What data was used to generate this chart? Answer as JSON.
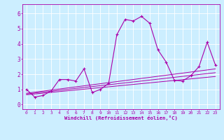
{
  "xlabel": "Windchill (Refroidissement éolien,°C)",
  "bg_color": "#cceeff",
  "line_color": "#aa00aa",
  "x_ticks": [
    0,
    1,
    2,
    3,
    4,
    5,
    6,
    7,
    8,
    9,
    10,
    11,
    12,
    13,
    14,
    15,
    16,
    17,
    18,
    19,
    20,
    21,
    22,
    23
  ],
  "y_ticks": [
    0,
    1,
    2,
    3,
    4,
    5,
    6
  ],
  "xlim": [
    -0.5,
    23.5
  ],
  "ylim": [
    -0.3,
    6.6
  ],
  "series1_x": [
    0,
    1,
    2,
    3,
    4,
    5,
    6,
    7,
    8,
    9,
    10,
    11,
    12,
    13,
    14,
    15,
    16,
    17,
    18,
    19,
    20,
    21,
    22,
    23
  ],
  "series1_y": [
    1.0,
    0.5,
    0.6,
    0.9,
    1.65,
    1.65,
    1.55,
    2.35,
    0.8,
    1.0,
    1.4,
    4.6,
    5.6,
    5.5,
    5.8,
    5.35,
    3.6,
    2.8,
    1.6,
    1.55,
    1.9,
    2.5,
    4.1,
    2.6
  ],
  "series2_x": [
    0,
    23
  ],
  "series2_y": [
    0.65,
    1.85
  ],
  "series3_x": [
    0,
    23
  ],
  "series3_y": [
    0.7,
    2.1
  ],
  "series4_x": [
    0,
    23
  ],
  "series4_y": [
    0.75,
    2.35
  ]
}
